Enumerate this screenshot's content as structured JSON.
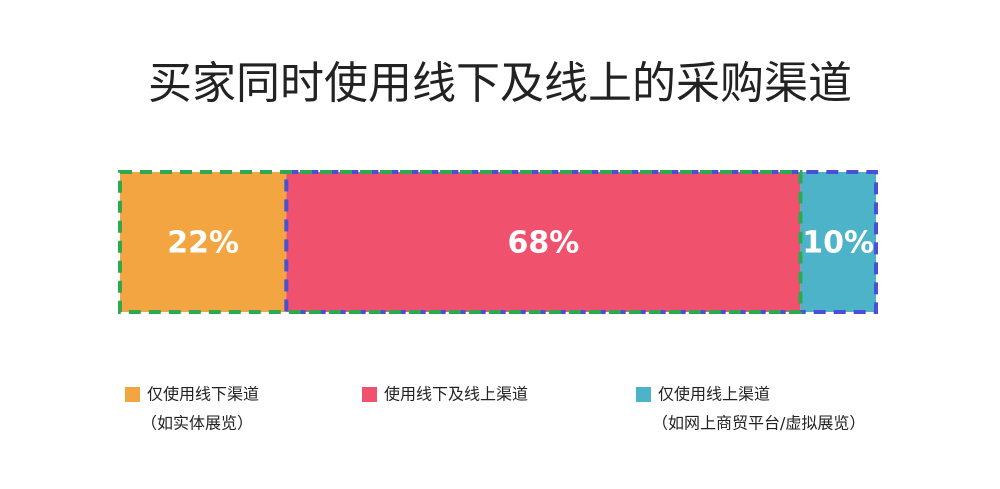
{
  "chart_data": {
    "type": "bar",
    "stacked": true,
    "orientation": "horizontal",
    "title": "买家同时使用线下及线上的采购渠道",
    "series": [
      {
        "name": "仅使用线下渠道",
        "note": "（如实体展览）",
        "color": "#f2a541",
        "values": [
          22
        ],
        "value_labels": [
          "22%"
        ]
      },
      {
        "name": "使用线下及线上渠道",
        "color": "#f0526e",
        "values": [
          68
        ],
        "value_labels": [
          "68%"
        ]
      },
      {
        "name": "仅使用线上渠道",
        "note": "（如网上商贸平台/虚拟展览）",
        "color": "#4db3c8",
        "values": [
          10
        ],
        "value_labels": [
          "10%"
        ]
      }
    ]
  }
}
